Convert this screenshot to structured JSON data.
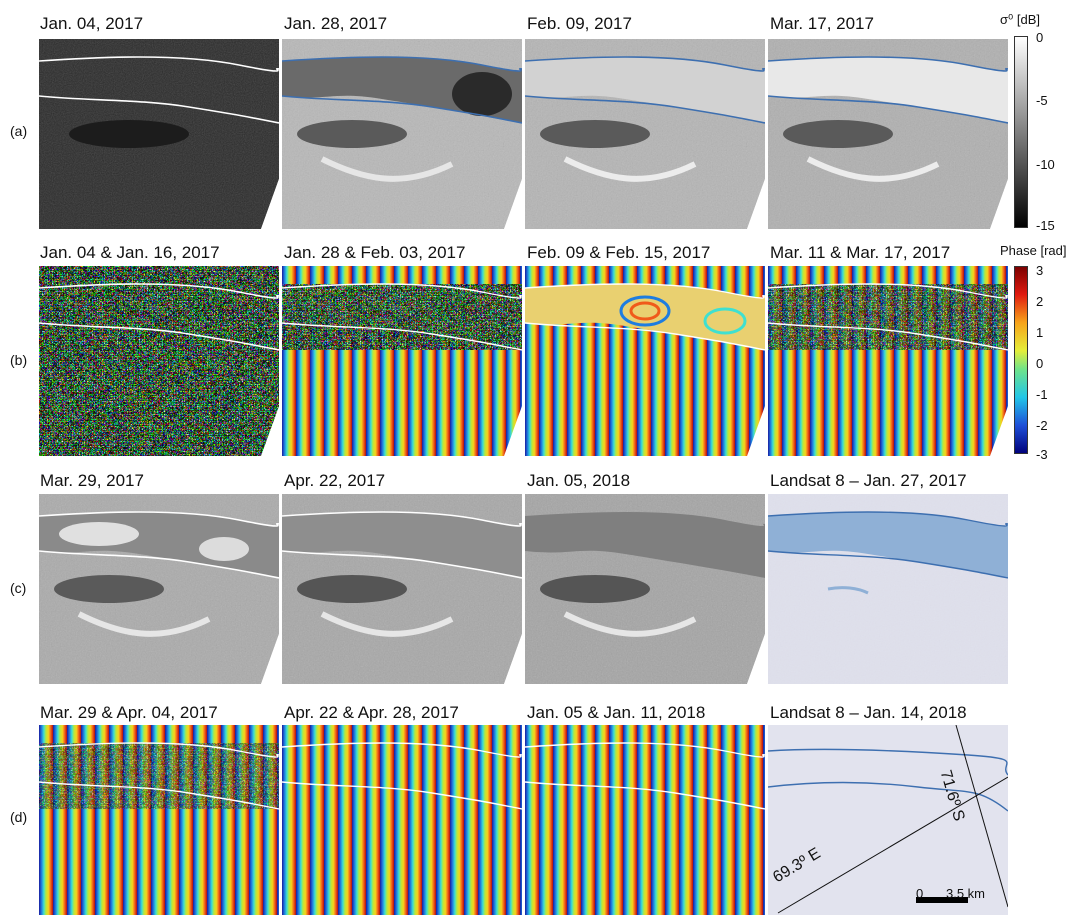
{
  "row_labels": [
    "(a)",
    "(b)",
    "(c)",
    "(d)"
  ],
  "panels": {
    "a1": "Jan. 04, 2017",
    "a2": "Jan. 28, 2017",
    "a3": "Feb. 09, 2017",
    "a4": "Mar. 17, 2017",
    "b1": "Jan. 04 & Jan. 16, 2017",
    "b2": "Jan. 28 & Feb. 03, 2017",
    "b3": "Feb. 09 & Feb. 15, 2017",
    "b4": "Mar. 11 & Mar. 17, 2017",
    "c1": "Mar. 29, 2017",
    "c2": "Apr. 22, 2017",
    "c3": "Jan. 05, 2018",
    "c4": "Landsat 8 – Jan. 27, 2017",
    "d1": "Mar. 29 & Apr. 04, 2017",
    "d2": "Apr. 22 & Apr. 28, 2017",
    "d3": "Jan. 05 & Jan. 11, 2018",
    "d4": "Landsat 8 – Jan. 14, 2018"
  },
  "colorbar_sigma": {
    "title": "σ⁰ [dB]",
    "ticks": [
      "0",
      "-5",
      "-10",
      "-15"
    ]
  },
  "colorbar_phase": {
    "title": "Phase [rad]",
    "ticks": [
      "3",
      "2",
      "1",
      "0",
      "-1",
      "-2",
      "-3"
    ]
  },
  "map_annotations": {
    "lon": "69.3º E",
    "lat": "71.6º S",
    "scale_zero": "0",
    "scale_km": "3.5 km"
  },
  "colors": {
    "outline_blue": "#3d6fb0",
    "outline_white": "#ffffff",
    "landsat_bg": "#dfe0ec",
    "lake_blue": "#8fb0d6"
  }
}
